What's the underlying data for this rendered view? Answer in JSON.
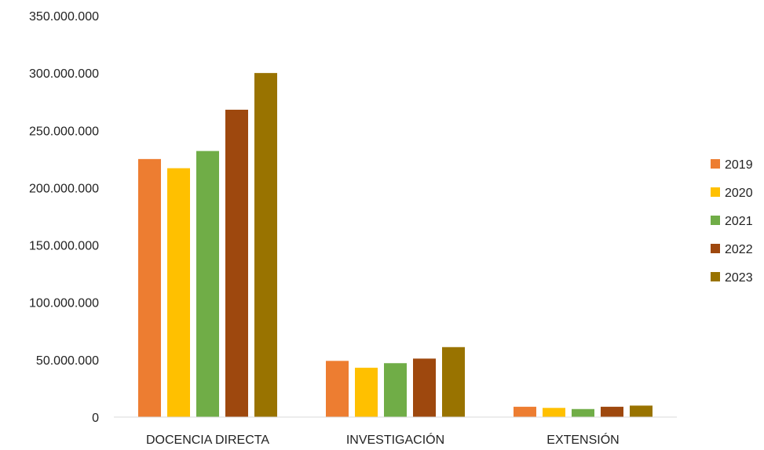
{
  "chart_data": {
    "type": "bar",
    "title": "",
    "xlabel": "",
    "ylabel": "",
    "categories": [
      "DOCENCIA DIRECTA",
      "INVESTIGACIÓN",
      "EXTENSIÓN"
    ],
    "series": [
      {
        "name": "2019",
        "color": "#ED7D31",
        "values": [
          225000000,
          49000000,
          9000000
        ]
      },
      {
        "name": "2020",
        "color": "#FFC000",
        "values": [
          217000000,
          43000000,
          8000000
        ]
      },
      {
        "name": "2021",
        "color": "#70AD47",
        "values": [
          232000000,
          47000000,
          7000000
        ]
      },
      {
        "name": "2022",
        "color": "#9E480E",
        "values": [
          268000000,
          51000000,
          9000000
        ]
      },
      {
        "name": "2023",
        "color": "#997300",
        "values": [
          300000000,
          61000000,
          10000000
        ]
      }
    ],
    "ylim": [
      0,
      350000000
    ],
    "yticks": [
      0,
      50000000,
      100000000,
      150000000,
      200000000,
      250000000,
      300000000,
      350000000
    ],
    "ytick_labels": [
      "0",
      "50.000.000",
      "100.000.000",
      "150.000.000",
      "200.000.000",
      "250.000.000",
      "300.000.000",
      "350.000.000"
    ],
    "grid": false,
    "legend_position": "right"
  }
}
